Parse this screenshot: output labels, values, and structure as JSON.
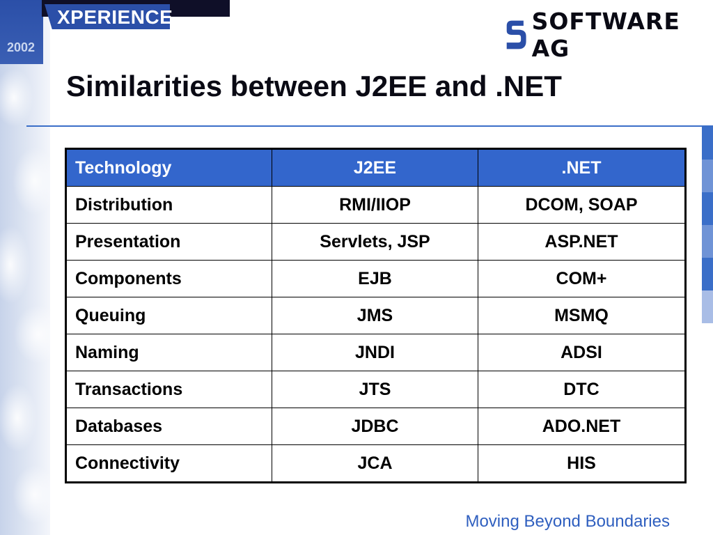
{
  "header": {
    "event_logo_text": "XPERIENCE",
    "event_year": "2002",
    "company_logo_text": "SOFTWARE AG"
  },
  "slide": {
    "title": "Similarities between J2EE and .NET"
  },
  "table": {
    "columns": [
      "Technology",
      "J2EE",
      ".NET"
    ],
    "rows": [
      [
        "Distribution",
        "RMI/IIOP",
        "DCOM, SOAP"
      ],
      [
        "Presentation",
        "Servlets, JSP",
        "ASP.NET"
      ],
      [
        "Components",
        "EJB",
        "COM+"
      ],
      [
        "Queuing",
        "JMS",
        "MSMQ"
      ],
      [
        "Naming",
        "JNDI",
        "ADSI"
      ],
      [
        "Transactions",
        "JTS",
        "DTC"
      ],
      [
        "Databases",
        "JDBC",
        "ADO.NET"
      ],
      [
        "Connectivity",
        "JCA",
        "HIS"
      ]
    ]
  },
  "footer": {
    "tagline": "Moving Beyond Boundaries"
  },
  "colors": {
    "header_fill": "#3366cc",
    "accent_blue": "#2b4fa8",
    "footer_text": "#2f5fbf",
    "stripe_colors": [
      "#3a6ec8",
      "#6f93d6",
      "#3a6ec8",
      "#6f93d6",
      "#3a6ec8",
      "#a9bde6"
    ]
  },
  "icons": {
    "company_mark": "software-ag-s-icon"
  }
}
